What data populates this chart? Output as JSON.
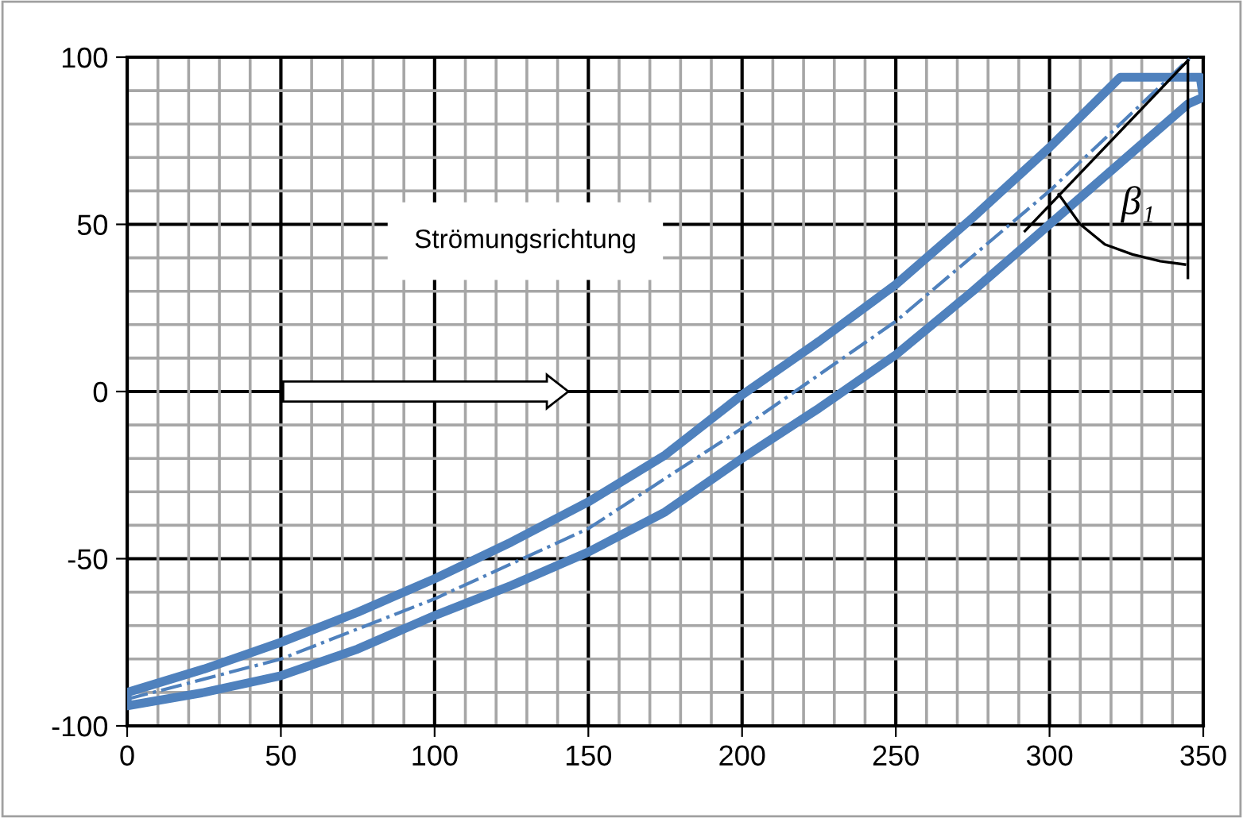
{
  "chart_data": {
    "type": "line",
    "xlim": [
      0,
      350
    ],
    "ylim": [
      -100,
      100
    ],
    "xticks": [
      0,
      50,
      100,
      150,
      200,
      250,
      300,
      350
    ],
    "yticks": [
      -100,
      -50,
      0,
      50,
      100
    ],
    "grid": true,
    "legend": false,
    "marker": "none",
    "annotations": [
      "Strömungsrichtung",
      "β₁"
    ],
    "series": [
      {
        "color": "#4f81bd",
        "line_style": "solid",
        "x": [
          0,
          25,
          50,
          75,
          100,
          125,
          150,
          175,
          200,
          225,
          250,
          275,
          300,
          323,
          349,
          350
        ],
        "values": [
          -90,
          -83,
          -75,
          -66,
          -56,
          -45,
          -33,
          -19,
          -1,
          15,
          32,
          52,
          73,
          94,
          94,
          88
        ]
      },
      {
        "color": "#4f81bd",
        "line_style": "solid",
        "x": [
          0,
          0,
          25,
          50,
          75,
          100,
          125,
          150,
          175,
          200,
          225,
          250,
          275,
          300,
          325,
          345,
          350
        ],
        "values": [
          -90,
          -94,
          -90,
          -85,
          -77,
          -67,
          -58,
          -48,
          -36,
          -20,
          -5,
          11,
          30,
          50,
          70,
          86,
          88
        ]
      },
      {
        "color": "#4f81bd",
        "line_style": "dashdot",
        "x": [
          0,
          50,
          100,
          150,
          200,
          250,
          300,
          346
        ],
        "values": [
          -92,
          -80,
          -62,
          -41,
          -11,
          21,
          60,
          100
        ]
      },
      {
        "color": "#000000",
        "line_style": "solid",
        "x": [
          292,
          345
        ],
        "values": [
          48,
          99
        ]
      },
      {
        "color": "#000000",
        "line_style": "solid",
        "x": [
          345,
          345
        ],
        "values": [
          99,
          34
        ]
      },
      {
        "color": "#000000",
        "line_style": "solid",
        "x": [
          303,
          310,
          318,
          327,
          336,
          344
        ],
        "values": [
          59,
          50,
          44,
          41,
          39,
          38
        ]
      }
    ]
  }
}
